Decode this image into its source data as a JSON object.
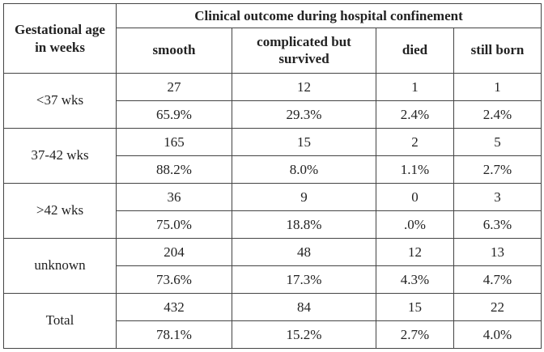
{
  "table": {
    "corner_header": "Gestational age in weeks",
    "group_header": "Clinical outcome during hospital confinement",
    "columns": [
      "smooth",
      "complicated but survived",
      "died",
      "still born"
    ],
    "rows": [
      {
        "label": "<37 wks",
        "counts": [
          "27",
          "12",
          "1",
          "1"
        ],
        "percents": [
          "65.9%",
          "29.3%",
          "2.4%",
          "2.4%"
        ]
      },
      {
        "label": "37-42 wks",
        "counts": [
          "165",
          "15",
          "2",
          "5"
        ],
        "percents": [
          "88.2%",
          "8.0%",
          "1.1%",
          "2.7%"
        ]
      },
      {
        "label": ">42 wks",
        "counts": [
          "36",
          "9",
          "0",
          "3"
        ],
        "percents": [
          "75.0%",
          "18.8%",
          ".0%",
          "6.3%"
        ]
      },
      {
        "label": "unknown",
        "counts": [
          "204",
          "48",
          "12",
          "13"
        ],
        "percents": [
          "73.6%",
          "17.3%",
          "4.3%",
          "4.7%"
        ]
      },
      {
        "label": "Total",
        "counts": [
          "432",
          "84",
          "15",
          "22"
        ],
        "percents": [
          "78.1%",
          "15.2%",
          "2.7%",
          "4.0%"
        ]
      }
    ]
  }
}
